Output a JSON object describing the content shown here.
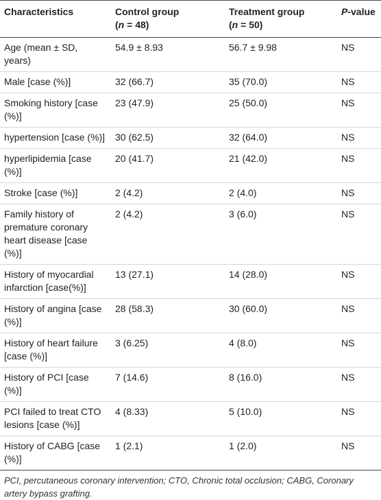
{
  "table": {
    "header": [
      {
        "lines": [
          [
            {
              "text": "Characteristics"
            }
          ]
        ]
      },
      {
        "lines": [
          [
            {
              "text": "Control group"
            }
          ],
          [
            {
              "text": "("
            },
            {
              "text": "n",
              "italic": true
            },
            {
              "text": " = 48)"
            }
          ]
        ]
      },
      {
        "lines": [
          [
            {
              "text": "Treatment group"
            }
          ],
          [
            {
              "text": "("
            },
            {
              "text": "n",
              "italic": true
            },
            {
              "text": " = 50)"
            }
          ]
        ]
      },
      {
        "lines": [
          [
            {
              "text": "P",
              "italic": true
            },
            {
              "text": "-value"
            }
          ]
        ]
      }
    ],
    "rows": [
      [
        "Age (mean ± SD, years)",
        "54.9 ± 8.93",
        "56.7 ± 9.98",
        "NS"
      ],
      [
        "Male [case (%)]",
        "32 (66.7)",
        "35 (70.0)",
        "NS"
      ],
      [
        "Smoking history [case (%)]",
        "23 (47.9)",
        "25 (50.0)",
        "NS"
      ],
      [
        "hypertension [case (%)]",
        "30 (62.5)",
        "32 (64.0)",
        "NS"
      ],
      [
        "hyperlipidemia [case (%)]",
        "20 (41.7)",
        "21 (42.0)",
        "NS"
      ],
      [
        "Stroke [case (%)]",
        "2 (4.2)",
        "2 (4.0)",
        "NS"
      ],
      [
        "Family history of premature coronary heart disease [case (%)]",
        "2 (4.2)",
        "3 (6.0)",
        "NS"
      ],
      [
        "History of myocardial infarction [case(%)]",
        "13 (27.1)",
        "14 (28.0)",
        "NS"
      ],
      [
        "History of angina [case (%)]",
        "28 (58.3)",
        "30 (60.0)",
        "NS"
      ],
      [
        "History of heart failure [case (%)]",
        "3 (6.25)",
        "4 (8.0)",
        "NS"
      ],
      [
        "History of PCI [case (%)]",
        "7 (14.6)",
        "8 (16.0)",
        "NS"
      ],
      [
        "PCI failed to treat CTO lesions [case (%)]",
        "4 (8.33)",
        "5 (10.0)",
        "NS"
      ],
      [
        "History of CABG [case (%)]",
        "1 (2.1)",
        "1 (2.0)",
        "NS"
      ]
    ],
    "footnote": "PCI, percutaneous coronary intervention; CTO, Chronic total occlusion; CABG, Coronary artery bypass grafting."
  }
}
